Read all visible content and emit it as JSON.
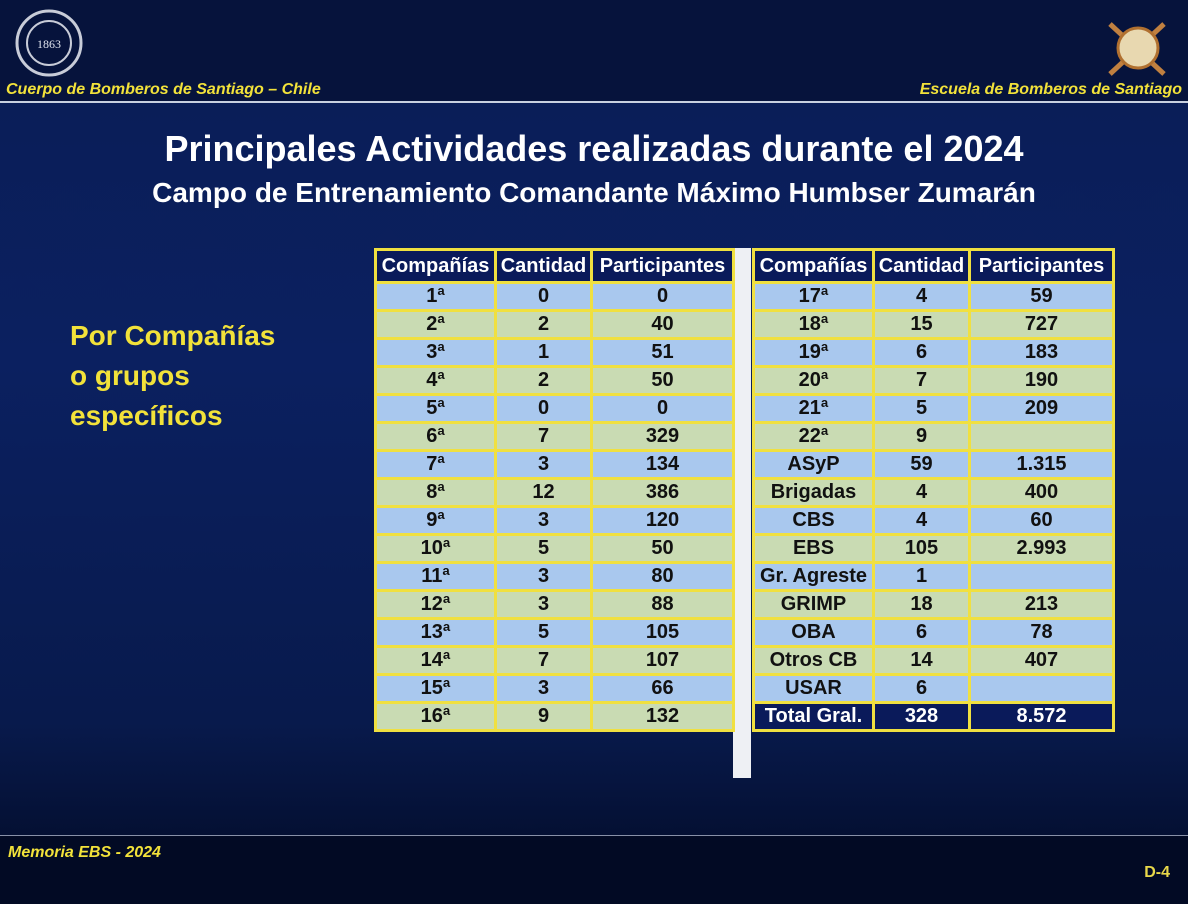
{
  "header": {
    "left": "Cuerpo de Bomberos de Santiago – Chile",
    "right": "Escuela de Bomberos de Santiago",
    "logo_text": "1863"
  },
  "title": "Principales Actividades realizadas durante el 2024",
  "subtitle": "Campo de Entrenamiento Comandante Máximo Humbser Zumarán",
  "side_label": [
    "Por Compañías",
    "o grupos",
    "específicos"
  ],
  "tables": [
    {
      "columns": [
        "Compañías",
        "Cantidad",
        "Participantes"
      ],
      "rows": [
        [
          "1ª",
          "0",
          "0"
        ],
        [
          "2ª",
          "2",
          "40"
        ],
        [
          "3ª",
          "1",
          "51"
        ],
        [
          "4ª",
          "2",
          "50"
        ],
        [
          "5ª",
          "0",
          "0"
        ],
        [
          "6ª",
          "7",
          "329"
        ],
        [
          "7ª",
          "3",
          "134"
        ],
        [
          "8ª",
          "12",
          "386"
        ],
        [
          "9ª",
          "3",
          "120"
        ],
        [
          "10ª",
          "5",
          "50"
        ],
        [
          "11ª",
          "3",
          "80"
        ],
        [
          "12ª",
          "3",
          "88"
        ],
        [
          "13ª",
          "5",
          "105"
        ],
        [
          "14ª",
          "7",
          "107"
        ],
        [
          "15ª",
          "3",
          "66"
        ],
        [
          "16ª",
          "9",
          "132"
        ]
      ]
    },
    {
      "columns": [
        "Compañías",
        "Cantidad",
        "Participantes"
      ],
      "rows": [
        [
          "17ª",
          "4",
          "59"
        ],
        [
          "18ª",
          "15",
          "727"
        ],
        [
          "19ª",
          "6",
          "183"
        ],
        [
          "20ª",
          "7",
          "190"
        ],
        [
          "21ª",
          "5",
          "209"
        ],
        [
          "22ª",
          "9",
          null
        ],
        [
          "ASyP",
          "59",
          "1.315"
        ],
        [
          "Brigadas",
          "4",
          "400"
        ],
        [
          "CBS",
          "4",
          "60"
        ],
        [
          "EBS",
          "105",
          "2.993"
        ],
        [
          "Gr. Agreste",
          "1",
          null
        ],
        [
          "GRIMP",
          "18",
          "213"
        ],
        [
          "OBA",
          "6",
          "78"
        ],
        [
          "Otros CB",
          "14",
          "407"
        ],
        [
          "USAR",
          "6",
          null
        ]
      ],
      "total": [
        "Total Gral.",
        "328",
        "8.572"
      ]
    }
  ],
  "footer": {
    "left": "Memoria EBS - 2024",
    "right": "D-4"
  }
}
